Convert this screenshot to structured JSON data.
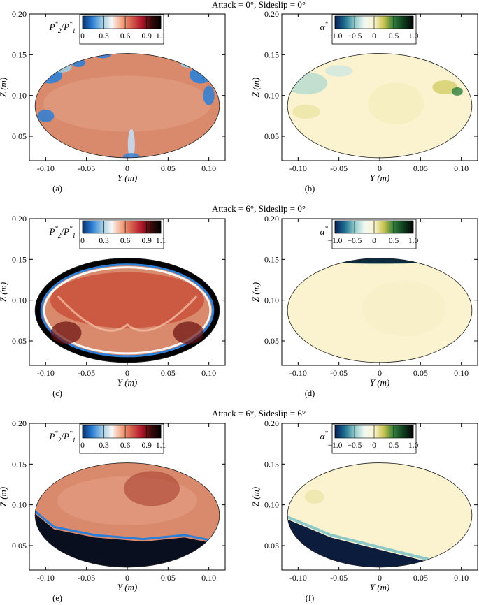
{
  "figure": {
    "rows": [
      {
        "title": "Attack = 0°, Sideslip = 0°",
        "panels": [
          "(a)",
          "(b)"
        ]
      },
      {
        "title": "Attack = 6°, Sideslip = 0°",
        "panels": [
          "(c)",
          "(d)"
        ]
      },
      {
        "title": "Attack = 6°, Sideslip = 6°",
        "panels": [
          "(e)",
          "(f)"
        ]
      }
    ]
  },
  "chart_data": [
    {
      "id": "a",
      "type": "heatmap",
      "quantity": "P2/P1",
      "row_title": "Attack = 0°, Sideslip = 0°",
      "panel_label": "(a)",
      "xlabel": "Y (m)",
      "ylabel": "Z (m)",
      "xlim": [
        -0.12,
        0.12
      ],
      "ylim": [
        0.02,
        0.2
      ],
      "xticks": [
        "-0.10",
        "-0.05",
        "0",
        "0.05",
        "0.10"
      ],
      "yticks": [
        "0.05",
        "0.10",
        "0.15",
        "0.20"
      ],
      "colorbar": {
        "title_main": "P",
        "title_sup1": "*",
        "title_sub1": "2",
        "title_div": "/",
        "title_main2": "P",
        "title_sup2": "*",
        "title_sub2": "1",
        "ticks": [
          "0",
          "0.3",
          "0.6",
          "0.9",
          "1.1"
        ],
        "tick_values": [
          0,
          0.3,
          0.6,
          0.9,
          1.1
        ],
        "range": [
          0,
          1.1
        ],
        "colors": [
          "#08306b",
          "#2c7fd8",
          "#9ecae1",
          "#f7f7f7",
          "#f4a582",
          "#d6604d",
          "#b2182b",
          "#3a0a0a",
          "#000000"
        ]
      },
      "dominant_value": 0.85,
      "features": [
        "blue low-recovery spots near upper left and right edges",
        "low-recovery streak at bottom center"
      ]
    },
    {
      "id": "b",
      "type": "heatmap",
      "quantity": "alpha",
      "row_title": "Attack = 0°, Sideslip = 0°",
      "panel_label": "(b)",
      "xlabel": "Y (m)",
      "ylabel": "Z (m)",
      "xlim": [
        -0.12,
        0.12
      ],
      "ylim": [
        0.02,
        0.2
      ],
      "xticks": [
        "-0.10",
        "-0.05",
        "0",
        "0.05",
        "0.10"
      ],
      "yticks": [
        "0.05",
        "0.10",
        "0.15",
        "0.20"
      ],
      "colorbar": {
        "title_main": "α",
        "title_sup1": "*",
        "ticks": [
          "−1.0",
          "−0.5",
          "0",
          "0.5",
          "1.0"
        ],
        "tick_values": [
          -1,
          -0.5,
          0,
          0.5,
          1
        ],
        "range": [
          -1,
          1
        ],
        "colors": [
          "#081d58",
          "#1d6e8f",
          "#8ec9c9",
          "#f0f8f4",
          "#fbf6d2",
          "#c9c24c",
          "#2f7d3a",
          "#0f3d1e",
          "#000000"
        ]
      },
      "dominant_value": 0.1
    },
    {
      "id": "c",
      "type": "heatmap",
      "quantity": "P2/P1",
      "row_title": "Attack = 6°, Sideslip = 0°",
      "panel_label": "(c)",
      "xlabel": "Y (m)",
      "ylabel": "Z (m)",
      "xlim": [
        -0.12,
        0.12
      ],
      "ylim": [
        0.02,
        0.2
      ],
      "xticks": [
        "-0.10",
        "-0.05",
        "0",
        "0.05",
        "0.10"
      ],
      "yticks": [
        "0.05",
        "0.10",
        "0.15",
        "0.20"
      ],
      "colorbar": {
        "title_main": "P",
        "title_sup1": "*",
        "title_sub1": "2",
        "title_div": "/",
        "title_main2": "P",
        "title_sup2": "*",
        "title_sub2": "1",
        "ticks": [
          "0",
          "0.3",
          "0.6",
          "0.9",
          "1.1"
        ],
        "tick_values": [
          0,
          0.3,
          0.6,
          0.9,
          1.1
        ],
        "range": [
          0,
          1.1
        ],
        "colors": [
          "#08306b",
          "#2c7fd8",
          "#9ecae1",
          "#f7f7f7",
          "#f4a582",
          "#d6604d",
          "#b2182b",
          "#3a0a0a",
          "#000000"
        ]
      },
      "dominant_value": 0.9,
      "features": [
        "dark ring at outer edge",
        "V-shaped shear band"
      ]
    },
    {
      "id": "d",
      "type": "heatmap",
      "quantity": "alpha",
      "row_title": "Attack = 6°, Sideslip = 0°",
      "panel_label": "(d)",
      "xlabel": "Y (m)",
      "ylabel": "Z (m)",
      "xlim": [
        -0.12,
        0.12
      ],
      "ylim": [
        0.02,
        0.2
      ],
      "xticks": [
        "-0.10",
        "-0.05",
        "0",
        "0.05",
        "0.10"
      ],
      "yticks": [
        "0.05",
        "0.10",
        "0.15",
        "0.20"
      ],
      "colorbar": {
        "title_main": "α",
        "title_sup1": "*",
        "ticks": [
          "−1.0",
          "−0.5",
          "0",
          "0.5",
          "1.0"
        ],
        "tick_values": [
          -1,
          -0.5,
          0,
          0.5,
          1
        ],
        "range": [
          -1,
          1
        ],
        "colors": [
          "#081d58",
          "#1d6e8f",
          "#8ec9c9",
          "#f0f8f4",
          "#fbf6d2",
          "#c9c24c",
          "#2f7d3a",
          "#0f3d1e",
          "#000000"
        ]
      },
      "dominant_value": 0.05,
      "features": [
        "dark band at top edge"
      ]
    },
    {
      "id": "e",
      "type": "heatmap",
      "quantity": "P2/P1",
      "row_title": "Attack = 6°, Sideslip = 6°",
      "panel_label": "(e)",
      "xlabel": "Y (m)",
      "ylabel": "Z (m)",
      "xlim": [
        -0.12,
        0.12
      ],
      "ylim": [
        0.02,
        0.2
      ],
      "xticks": [
        "-0.10",
        "-0.05",
        "0",
        "0.05",
        "0.10"
      ],
      "yticks": [
        "0.05",
        "0.10",
        "0.15",
        "0.20"
      ],
      "colorbar": {
        "title_main": "P",
        "title_sup1": "*",
        "title_sub1": "2",
        "title_div": "/",
        "title_main2": "P",
        "title_sup2": "*",
        "title_sub2": "1",
        "ticks": [
          "0",
          "0.3",
          "0.6",
          "0.9",
          "1.1"
        ],
        "tick_values": [
          0,
          0.3,
          0.6,
          0.9,
          1.1
        ],
        "range": [
          0,
          1.1
        ],
        "colors": [
          "#08306b",
          "#2c7fd8",
          "#9ecae1",
          "#f7f7f7",
          "#f4a582",
          "#d6604d",
          "#b2182b",
          "#3a0a0a",
          "#000000"
        ]
      },
      "dominant_value": 0.85,
      "features": [
        "dark low region at lower left and bottom"
      ]
    },
    {
      "id": "f",
      "type": "heatmap",
      "quantity": "alpha",
      "row_title": "Attack = 6°, Sideslip = 6°",
      "panel_label": "(f)",
      "xlabel": "Y (m)",
      "ylabel": "Z (m)",
      "xlim": [
        -0.12,
        0.12
      ],
      "ylim": [
        0.02,
        0.2
      ],
      "xticks": [
        "-0.10",
        "-0.05",
        "0",
        "0.05",
        "0.10"
      ],
      "yticks": [
        "0.05",
        "0.10",
        "0.15",
        "0.20"
      ],
      "colorbar": {
        "title_main": "α",
        "title_sup1": "*",
        "ticks": [
          "−1.0",
          "−0.5",
          "0",
          "0.5",
          "1.0"
        ],
        "tick_values": [
          -1,
          -0.5,
          0,
          0.5,
          1
        ],
        "range": [
          -1,
          1
        ],
        "colors": [
          "#081d58",
          "#1d6e8f",
          "#8ec9c9",
          "#f0f8f4",
          "#fbf6d2",
          "#c9c24c",
          "#2f7d3a",
          "#0f3d1e",
          "#000000"
        ]
      },
      "dominant_value": 0.1,
      "features": [
        "dark negative region at lower left"
      ]
    }
  ]
}
